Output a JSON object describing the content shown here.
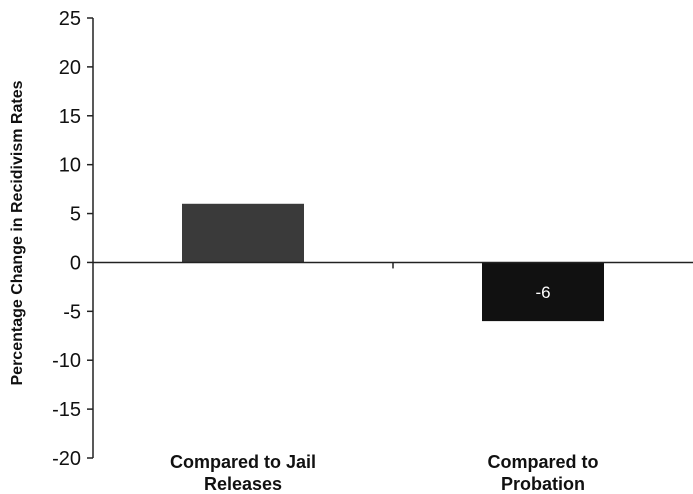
{
  "chart_data": {
    "type": "bar",
    "title": "",
    "xlabel": "",
    "ylabel": "Percentage Change in Recidivism Rates",
    "categories": [
      [
        "Compared to Jail",
        "Releases"
      ],
      [
        "Compared to",
        "Probation"
      ]
    ],
    "values": [
      6,
      -6
    ],
    "data_labels": [
      "",
      "-6"
    ],
    "ylim": [
      -20,
      25
    ],
    "yticks": [
      25,
      20,
      15,
      10,
      5,
      0,
      -5,
      -10,
      -15,
      -20
    ],
    "grid": false,
    "legend": "none",
    "bar_colors": [
      "#3a3a3a",
      "#111111"
    ],
    "data_label_color": "#ffffff"
  }
}
